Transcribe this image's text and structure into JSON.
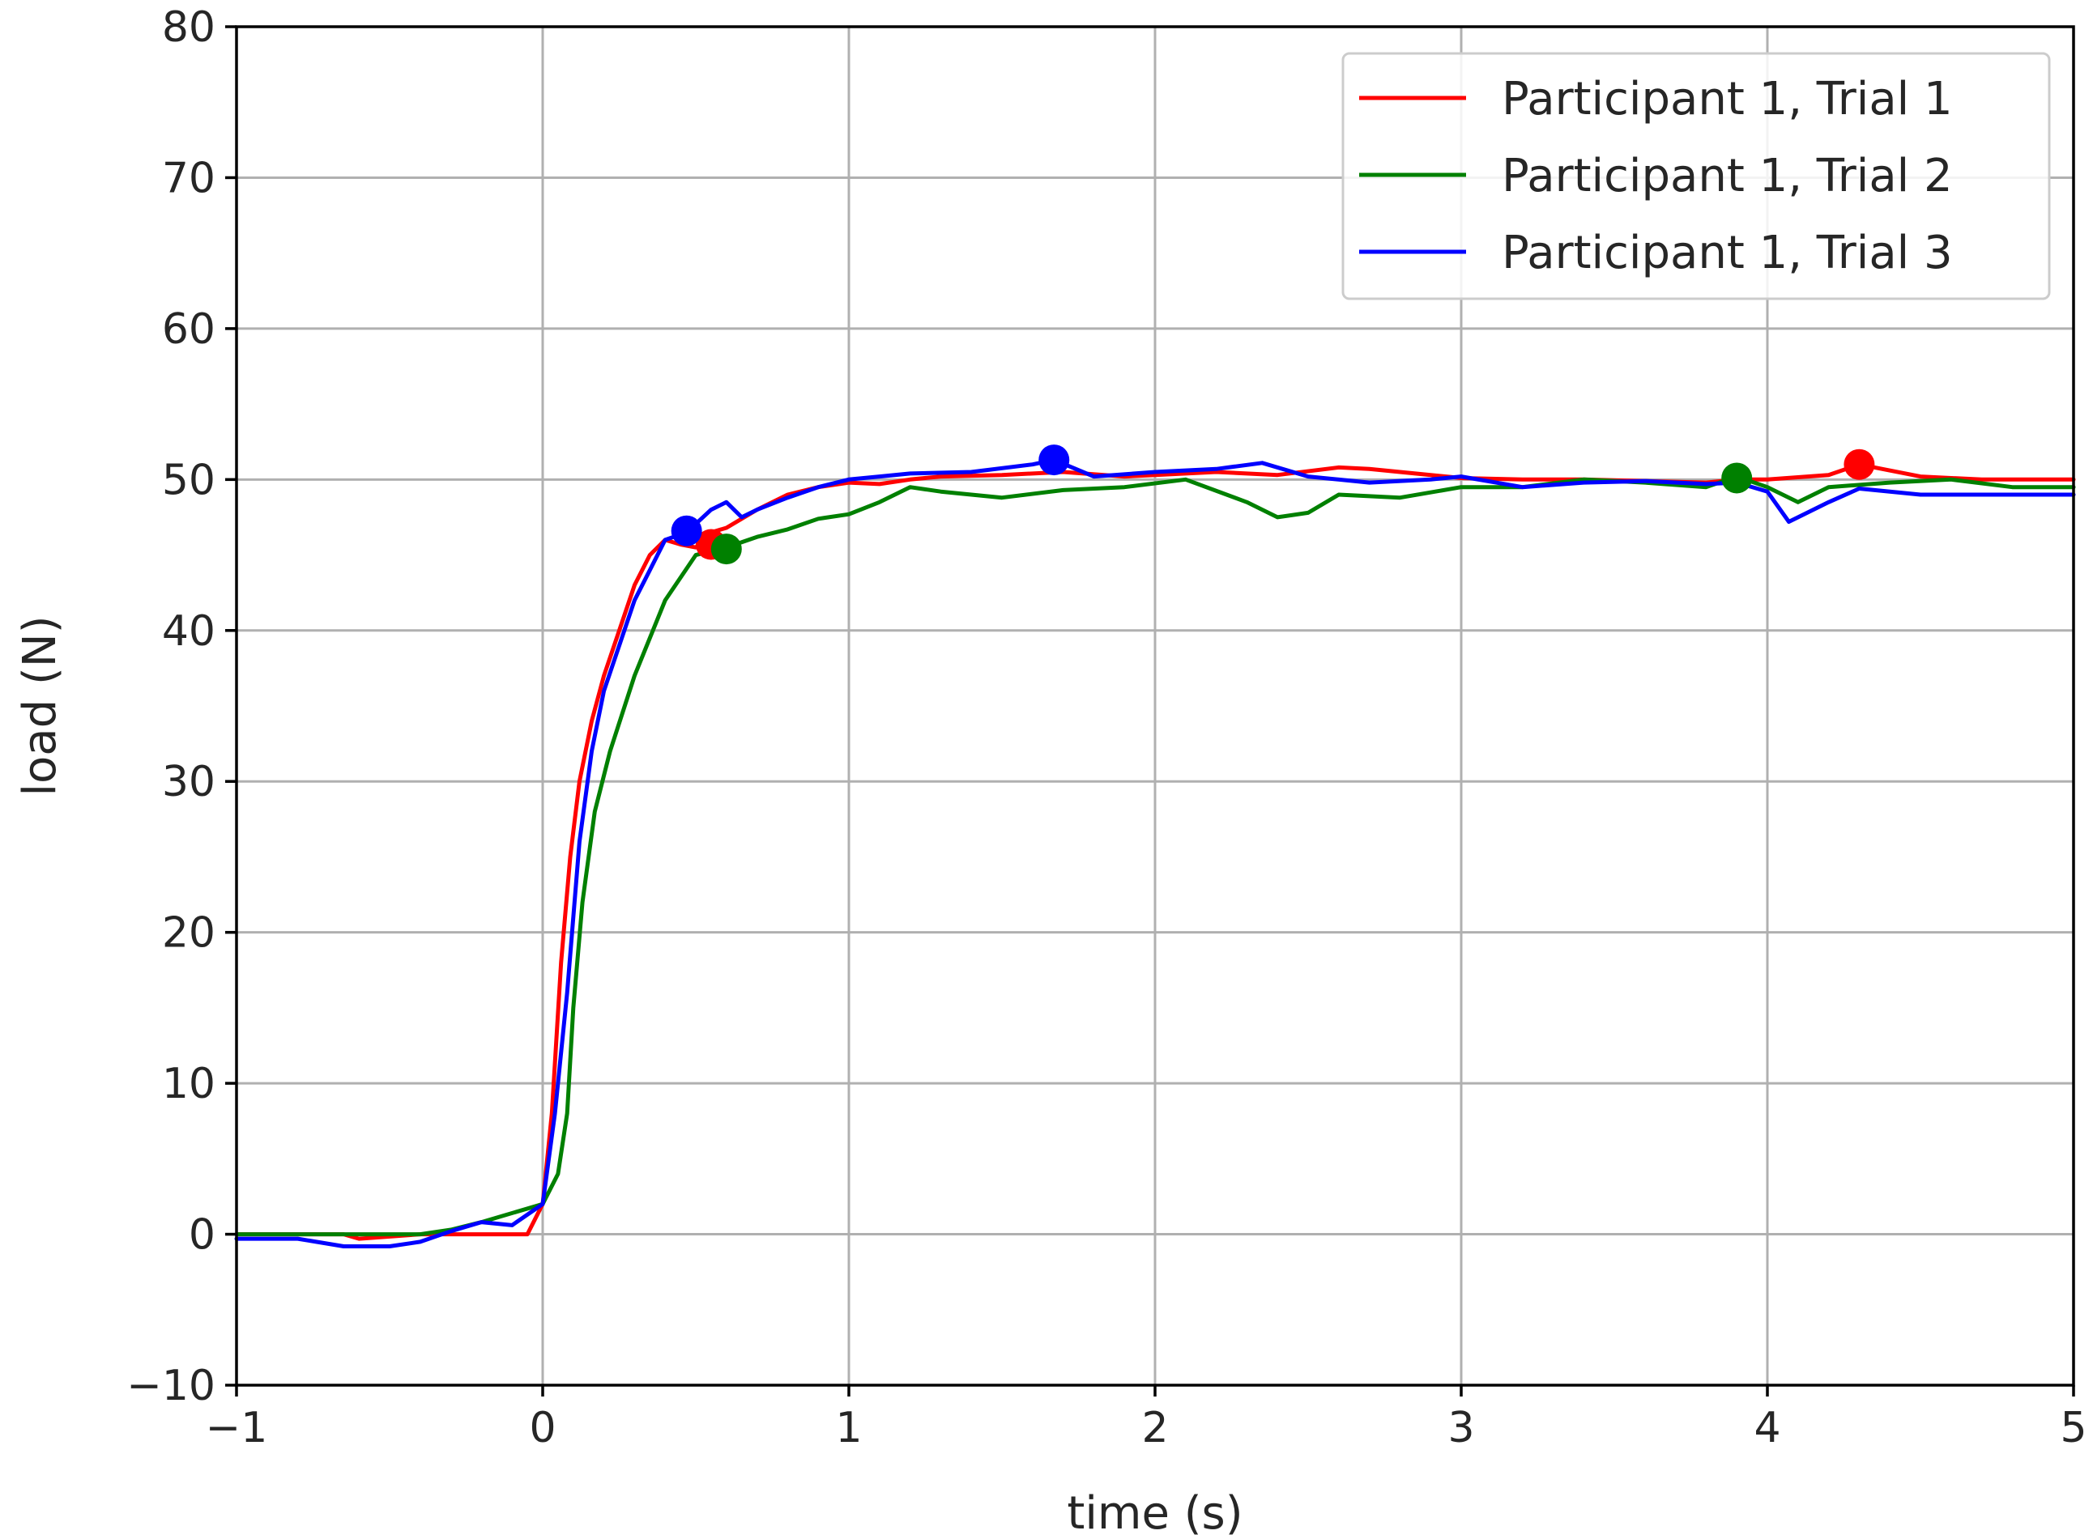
{
  "chart_data": {
    "type": "line",
    "title": "",
    "xlabel": "time (s)",
    "ylabel": "load (N)",
    "xlim": [
      -1,
      5
    ],
    "ylim": [
      -10,
      80
    ],
    "xticks": [
      -1,
      0,
      1,
      2,
      3,
      4,
      5
    ],
    "xtick_labels": [
      "−1",
      "0",
      "1",
      "2",
      "3",
      "4",
      "5"
    ],
    "yticks": [
      -10,
      0,
      10,
      20,
      30,
      40,
      50,
      60,
      70,
      80
    ],
    "ytick_labels": [
      "−10",
      "0",
      "10",
      "20",
      "30",
      "40",
      "50",
      "60",
      "70",
      "80"
    ],
    "grid": true,
    "legend_position": "top-right",
    "series": [
      {
        "name": "Participant 1, Trial 1",
        "color": "#ff0000",
        "x": [
          -1,
          -0.8,
          -0.65,
          -0.6,
          -0.4,
          -0.2,
          -0.1,
          -0.05,
          0,
          0.03,
          0.06,
          0.09,
          0.12,
          0.16,
          0.2,
          0.25,
          0.3,
          0.35,
          0.4,
          0.45,
          0.5,
          0.55,
          0.6,
          0.7,
          0.8,
          0.9,
          1.0,
          1.1,
          1.2,
          1.3,
          1.5,
          1.7,
          1.9,
          2.0,
          2.2,
          2.4,
          2.6,
          2.7,
          2.9,
          3.0,
          3.2,
          3.4,
          3.6,
          3.8,
          3.9,
          4.0,
          4.2,
          4.3,
          4.5,
          4.7,
          5.0
        ],
        "y": [
          0,
          0,
          0,
          -0.3,
          0,
          0,
          0,
          0,
          2,
          8,
          18,
          25,
          30,
          34,
          37,
          40,
          43,
          45,
          46,
          45.7,
          45.5,
          46.5,
          46.8,
          48,
          49,
          49.5,
          49.8,
          49.7,
          50,
          50.2,
          50.3,
          50.5,
          50.2,
          50.3,
          50.5,
          50.3,
          50.8,
          50.7,
          50.3,
          50.1,
          50.0,
          50.0,
          49.9,
          49.8,
          50.0,
          50.0,
          50.3,
          51,
          50.2,
          50.0,
          50.0
        ]
      },
      {
        "name": "Participant 1, Trial 2",
        "color": "#008000",
        "x": [
          -1,
          -0.6,
          -0.4,
          -0.3,
          -0.2,
          0,
          0.05,
          0.08,
          0.1,
          0.13,
          0.17,
          0.22,
          0.3,
          0.4,
          0.5,
          0.6,
          0.7,
          0.8,
          0.9,
          1.0,
          1.1,
          1.2,
          1.3,
          1.5,
          1.7,
          1.9,
          2.1,
          2.3,
          2.4,
          2.5,
          2.6,
          2.8,
          3.0,
          3.2,
          3.4,
          3.6,
          3.8,
          3.9,
          4.0,
          4.1,
          4.2,
          4.4,
          4.6,
          4.8,
          5.0
        ],
        "y": [
          0,
          0,
          0,
          0.3,
          0.8,
          2,
          4,
          8,
          15,
          22,
          28,
          32,
          37,
          42,
          45,
          45.5,
          46.2,
          46.7,
          47.4,
          47.7,
          48.5,
          49.5,
          49.2,
          48.8,
          49.3,
          49.5,
          50.0,
          48.5,
          47.5,
          47.8,
          49.0,
          48.8,
          49.5,
          49.5,
          50.0,
          49.8,
          49.5,
          50.2,
          49.5,
          48.5,
          49.5,
          49.8,
          50.0,
          49.5,
          49.5
        ]
      },
      {
        "name": "Participant 1, Trial 3",
        "color": "#0000ff",
        "x": [
          -1,
          -0.8,
          -0.65,
          -0.5,
          -0.4,
          -0.3,
          -0.2,
          -0.1,
          0,
          0.04,
          0.08,
          0.12,
          0.16,
          0.2,
          0.25,
          0.3,
          0.35,
          0.4,
          0.47,
          0.55,
          0.6,
          0.65,
          0.7,
          0.8,
          0.9,
          1.0,
          1.1,
          1.2,
          1.4,
          1.6,
          1.67,
          1.8,
          2.0,
          2.2,
          2.35,
          2.5,
          2.7,
          2.9,
          3.0,
          3.2,
          3.4,
          3.6,
          3.8,
          3.9,
          4.0,
          4.07,
          4.2,
          4.3,
          4.5,
          4.7,
          5.0
        ],
        "y": [
          -0.3,
          -0.3,
          -0.8,
          -0.8,
          -0.5,
          0.2,
          0.8,
          0.6,
          2,
          8,
          16,
          26,
          32,
          36,
          39,
          42,
          44,
          46,
          46.5,
          48,
          48.5,
          47.5,
          48,
          48.8,
          49.5,
          50,
          50.2,
          50.4,
          50.5,
          51,
          51.3,
          50.2,
          50.5,
          50.7,
          51.1,
          50.2,
          49.8,
          50.0,
          50.2,
          49.5,
          49.8,
          49.9,
          49.7,
          49.8,
          49.2,
          47.2,
          48.5,
          49.4,
          49.0,
          49.0,
          49.0
        ]
      }
    ],
    "markers": [
      {
        "series": "Participant 1, Trial 1",
        "color": "#ff0000",
        "points": [
          [
            0.55,
            45.7
          ],
          [
            4.3,
            51.0
          ]
        ]
      },
      {
        "series": "Participant 1, Trial 2",
        "color": "#008000",
        "points": [
          [
            0.6,
            45.4
          ],
          [
            3.9,
            50.1
          ]
        ]
      },
      {
        "series": "Participant 1, Trial 3",
        "color": "#0000ff",
        "points": [
          [
            0.47,
            46.6
          ],
          [
            1.67,
            51.3
          ]
        ]
      }
    ]
  }
}
